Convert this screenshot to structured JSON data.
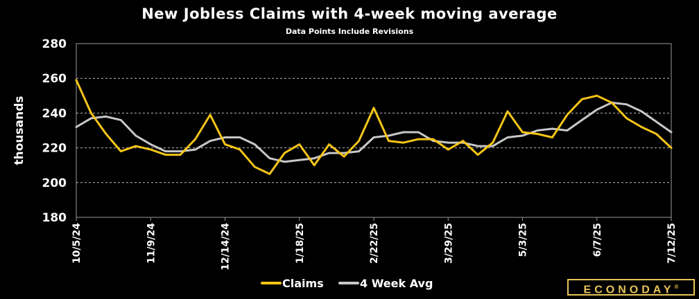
{
  "chart_data": {
    "type": "line",
    "title": "New Jobless Claims with 4-week moving average",
    "subtitle": "Data Points Include Revisions",
    "ylabel": "thousands",
    "xlabel": "",
    "ylim": [
      180,
      280
    ],
    "yticks": [
      180,
      200,
      220,
      240,
      260,
      280
    ],
    "grid": true,
    "legend_position": "bottom",
    "x": [
      "10/5/24",
      "10/12/24",
      "10/19/24",
      "10/26/24",
      "11/2/24",
      "11/9/24",
      "11/16/24",
      "11/23/24",
      "11/30/24",
      "12/7/24",
      "12/14/24",
      "12/21/24",
      "12/28/24",
      "1/4/25",
      "1/11/25",
      "1/18/25",
      "1/25/25",
      "2/1/25",
      "2/8/25",
      "2/15/25",
      "2/22/25",
      "3/1/25",
      "3/8/25",
      "3/15/25",
      "3/22/25",
      "3/29/25",
      "4/5/25",
      "4/12/25",
      "4/19/25",
      "4/26/25",
      "5/3/25",
      "5/10/25",
      "5/17/25",
      "5/24/25",
      "5/31/25",
      "6/7/25",
      "6/14/25",
      "6/21/25",
      "6/28/25",
      "7/5/25",
      "7/12/25"
    ],
    "tick_labels": [
      "10/5/24",
      "11/9/24",
      "12/14/24",
      "1/18/25",
      "2/22/25",
      "3/29/25",
      "5/3/25",
      "6/7/25",
      "7/12/25"
    ],
    "series": [
      {
        "name": "Claims",
        "color": "#f5c518",
        "values": [
          259,
          240,
          228,
          218,
          221,
          219,
          216,
          216,
          225,
          239,
          222,
          219,
          209,
          205,
          217,
          222,
          210,
          222,
          215,
          224,
          243,
          224,
          223,
          225,
          225,
          219,
          224,
          216,
          223,
          241,
          229,
          228,
          226,
          239,
          248,
          250,
          246,
          237,
          232,
          228,
          220
        ]
      },
      {
        "name": "4 Week Avg",
        "color": "#c8c8c8",
        "values": [
          232,
          237,
          238,
          236,
          227,
          222,
          218,
          218,
          219,
          224,
          226,
          226,
          222,
          214,
          212,
          213,
          214,
          217,
          217,
          218,
          226,
          227,
          229,
          229,
          224,
          223,
          223,
          221,
          221,
          226,
          227,
          230,
          231,
          230,
          236,
          242,
          246,
          245,
          241,
          235,
          229
        ]
      }
    ]
  },
  "brand": {
    "name": "ECONODAY",
    "mark": "®"
  }
}
